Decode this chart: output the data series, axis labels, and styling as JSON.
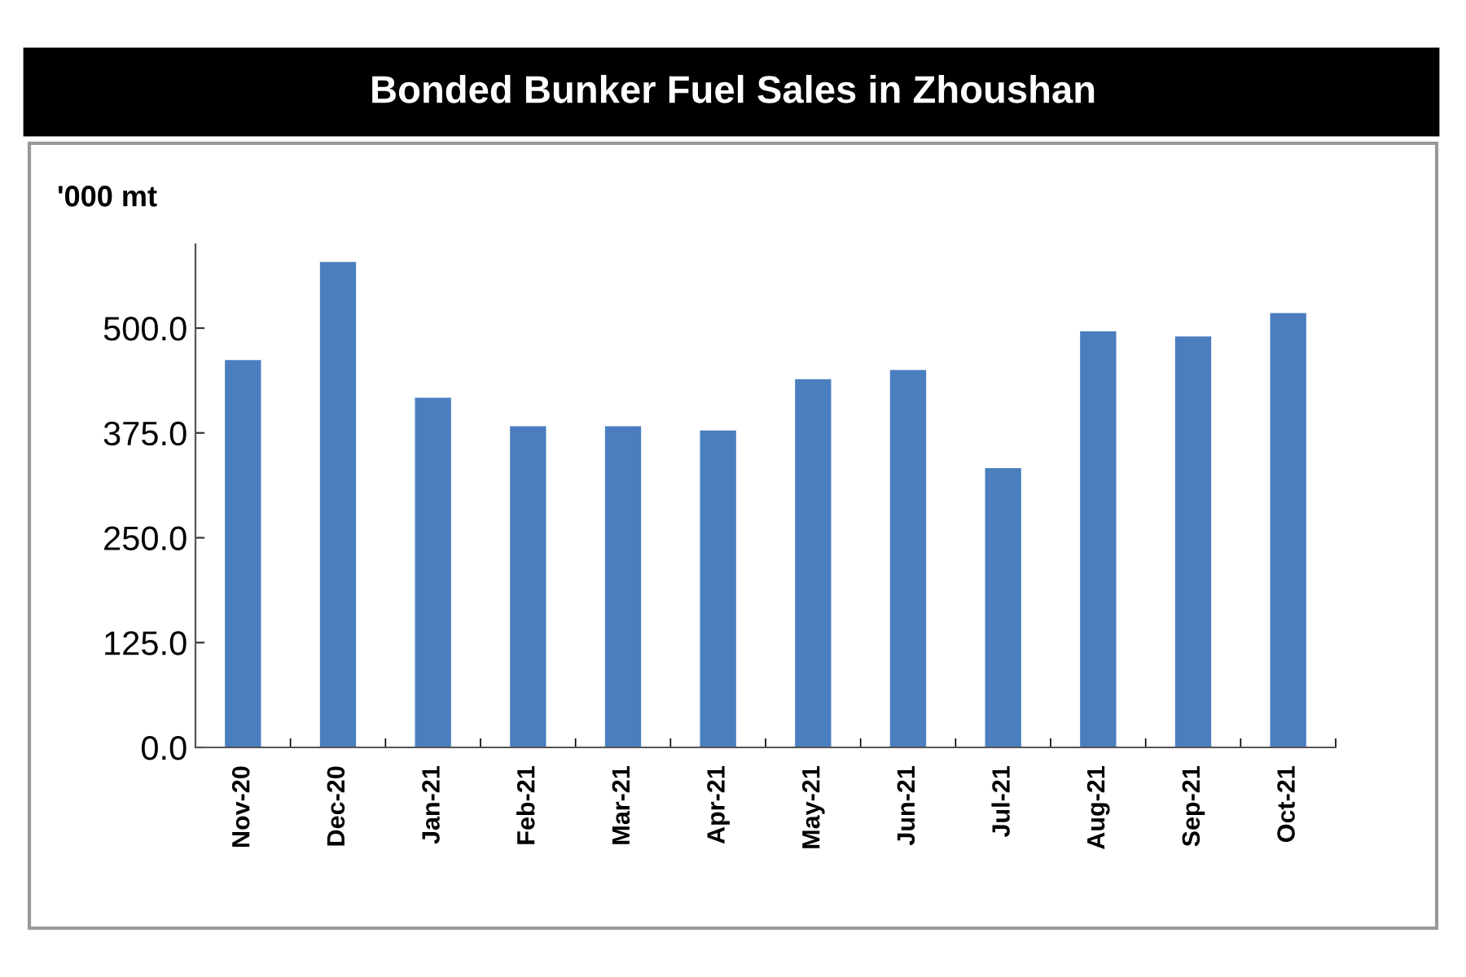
{
  "chart_data": {
    "type": "bar",
    "title": "Bonded Bunker Fuel Sales in Zhoushan",
    "ylabel": "'000 mt",
    "categories": [
      "Nov-20",
      "Dec-20",
      "Jan-21",
      "Feb-21",
      "Mar-21",
      "Apr-21",
      "May-21",
      "Jun-21",
      "Jul-21",
      "Aug-21",
      "Sep-21",
      "Oct-21"
    ],
    "values": [
      462,
      579,
      417,
      383,
      383,
      378,
      439,
      450,
      333,
      496,
      490,
      518
    ],
    "color": "#4a7ebf",
    "ylim": [
      0,
      600
    ],
    "yticks": [
      {
        "value": 0,
        "label": "0.0"
      },
      {
        "value": 125,
        "label": "125.0"
      },
      {
        "value": 250,
        "label": "250.0"
      },
      {
        "value": 375,
        "label": "375.0"
      },
      {
        "value": 500,
        "label": "500.0"
      }
    ],
    "grid": false,
    "legend": false
  }
}
